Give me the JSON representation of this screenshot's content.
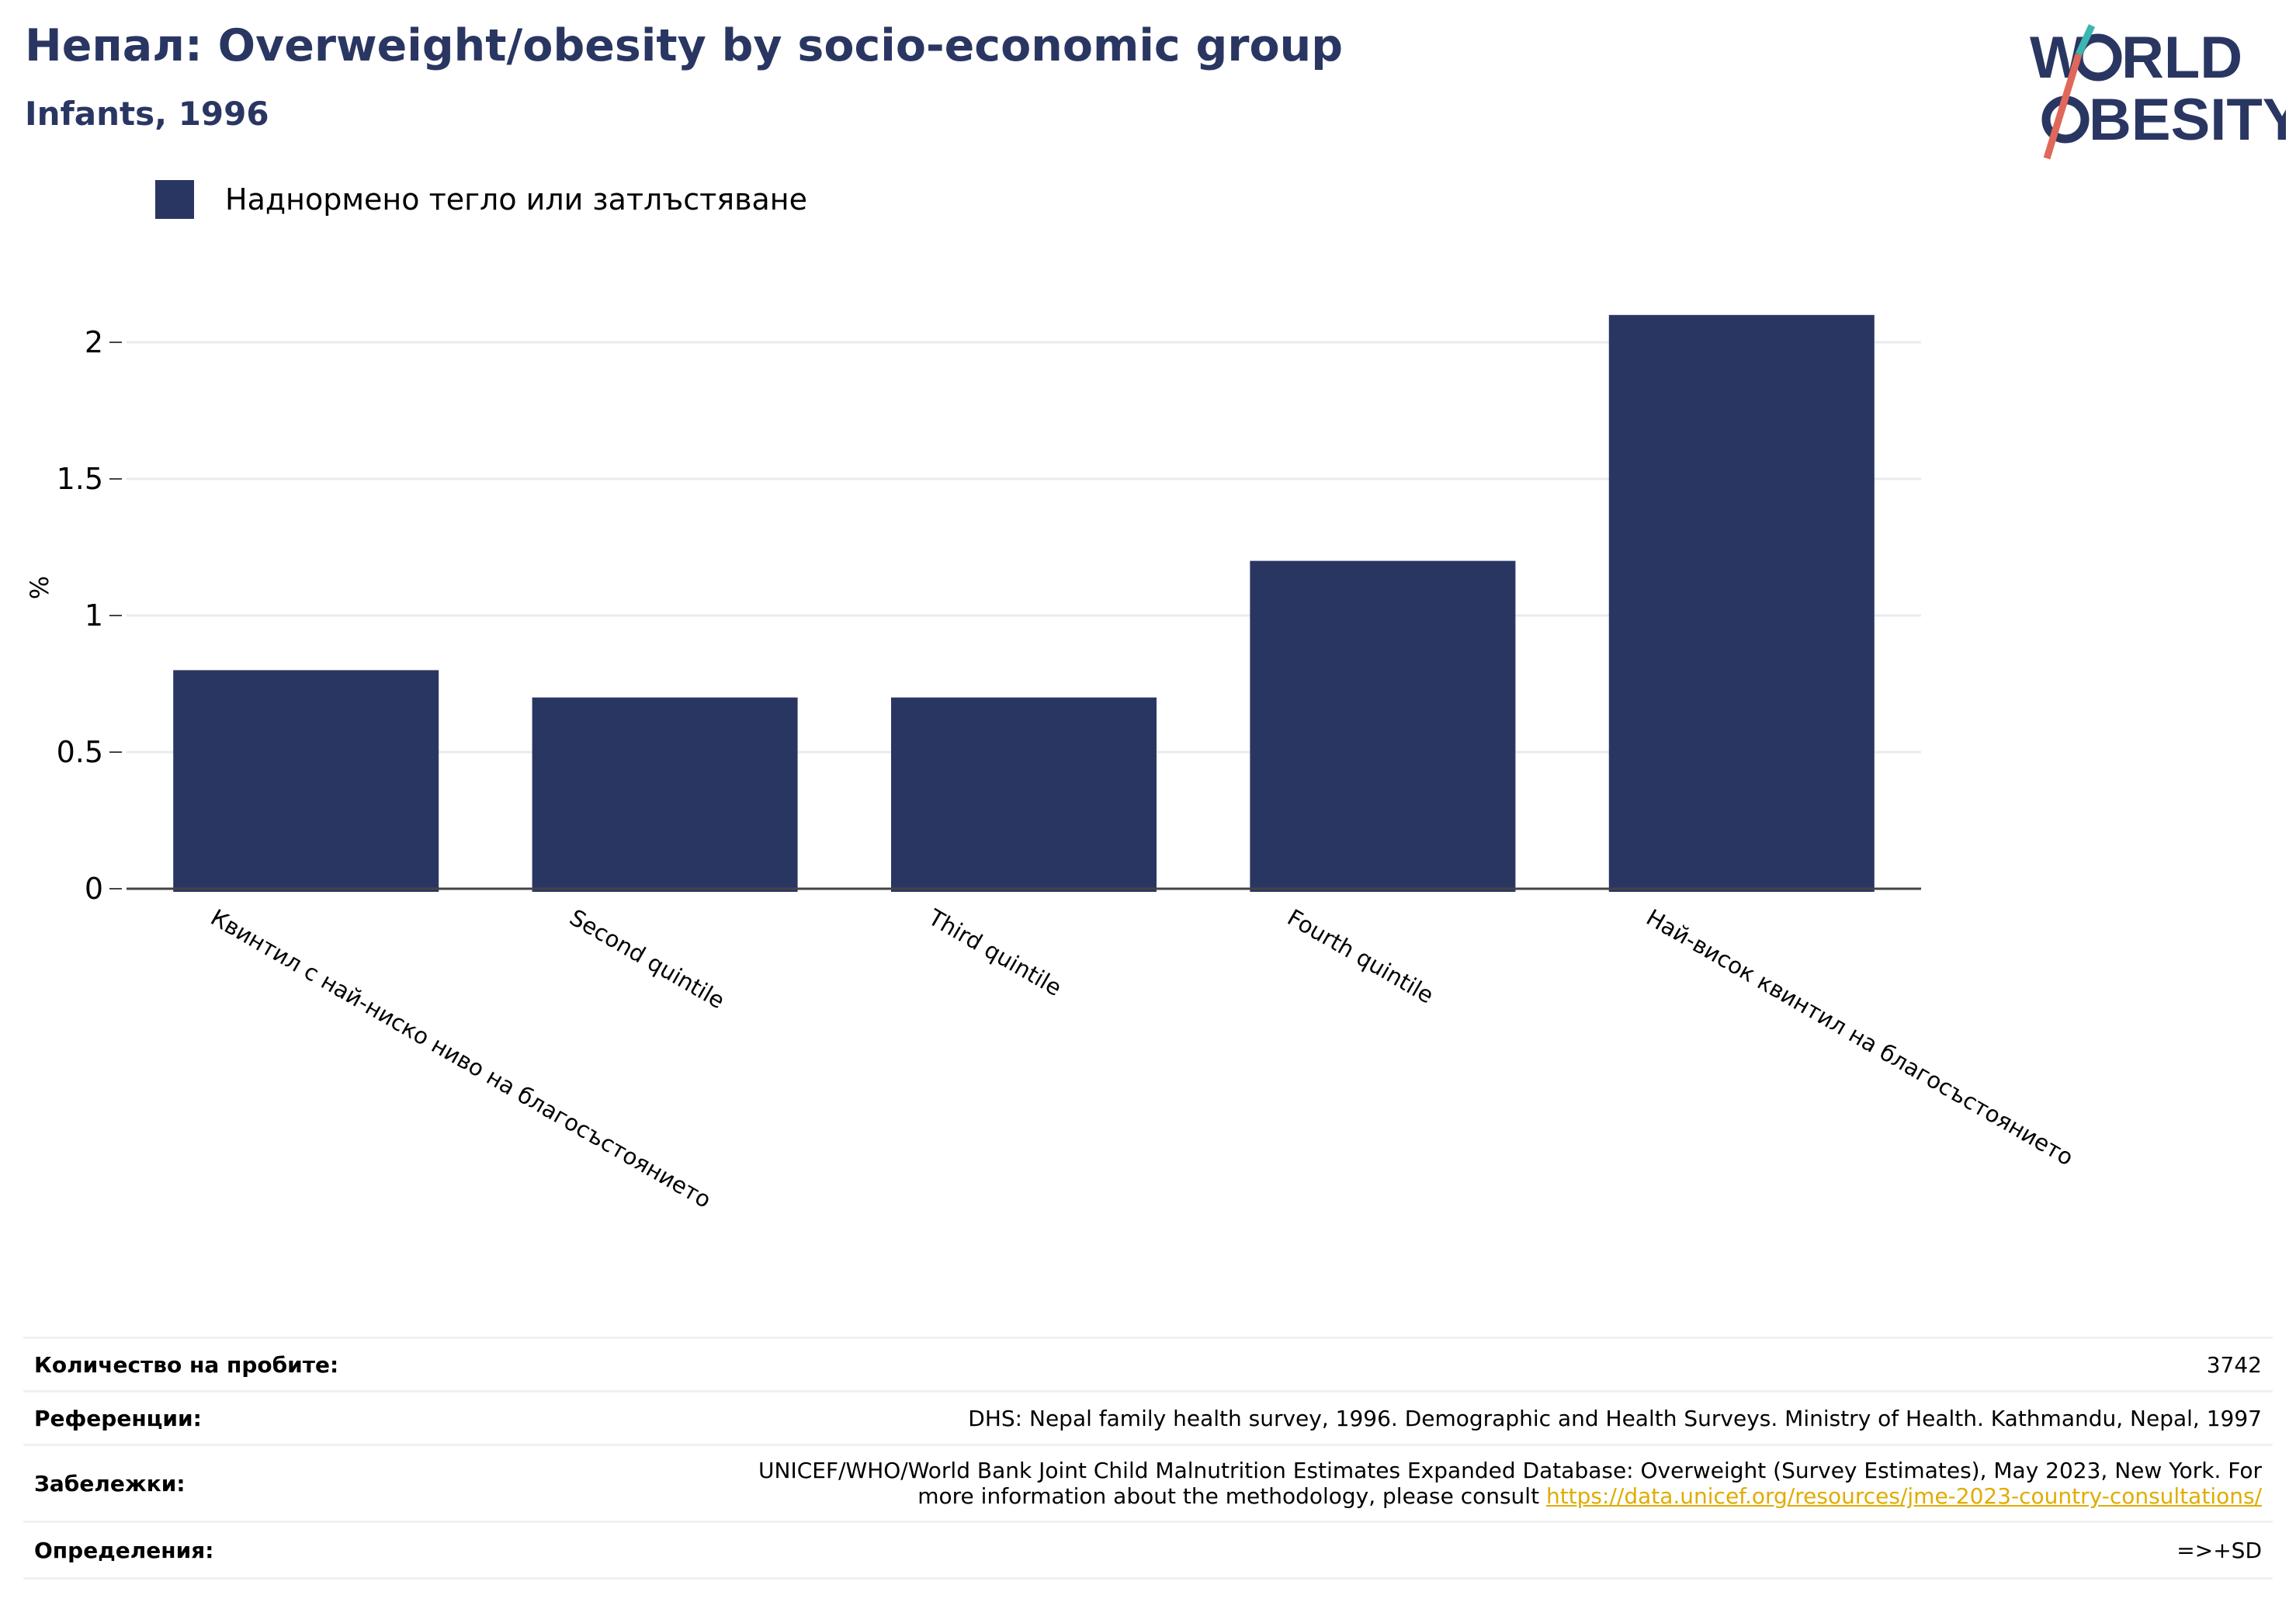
{
  "header": {
    "title": "Непал: Overweight/obesity by socio-economic group",
    "subtitle": "Infants, 1996"
  },
  "logo": {
    "line1": "W",
    "line1_rest": "RLD",
    "line2_rest": "BESITY",
    "colors": {
      "text": "#2a3662",
      "teal": "#3cb6b0",
      "coral": "#e0685a"
    }
  },
  "legend": {
    "label": "Наднормено тегло или затлъстяване",
    "color": "#2a3662"
  },
  "chart_data": {
    "type": "bar",
    "categories": [
      "Квинтил с най-ниско ниво на благосъстоянието",
      "Second quintile",
      "Third quintile",
      "Fourth quintile",
      "Най-висок квинтил на благосъстоянието"
    ],
    "series": [
      {
        "name": "Наднормено тегло или затлъстяване",
        "values": [
          0.8,
          0.7,
          0.7,
          1.2,
          2.1
        ],
        "color": "#2a3662"
      }
    ],
    "ylabel": "%",
    "ylim": [
      0,
      2.2
    ],
    "yticks": [
      0,
      0.5,
      1,
      1.5,
      2
    ],
    "ytick_labels": [
      "0",
      "0.5",
      "1",
      "1.5",
      "2"
    ],
    "grid": true
  },
  "info": {
    "sample_label": "Количество на пробите:",
    "sample_value": "3742",
    "ref_label": "Референции:",
    "ref_value": "DHS: Nepal family health survey, 1996. Demographic and Health Surveys. Ministry of Health. Kathmandu, Nepal, 1997",
    "notes_label": "Забележки:",
    "notes_line1": "UNICEF/WHO/World Bank Joint Child Malnutrition Estimates Expanded Database: Overweight (Survey Estimates), May 2023, New York. For",
    "notes_line2": "more information about the methodology, please consult ",
    "notes_link": "https://data.unicef.org/resources/jme-2023-country-consultations/",
    "def_label": "Определения:",
    "def_value": "=>+SD"
  }
}
